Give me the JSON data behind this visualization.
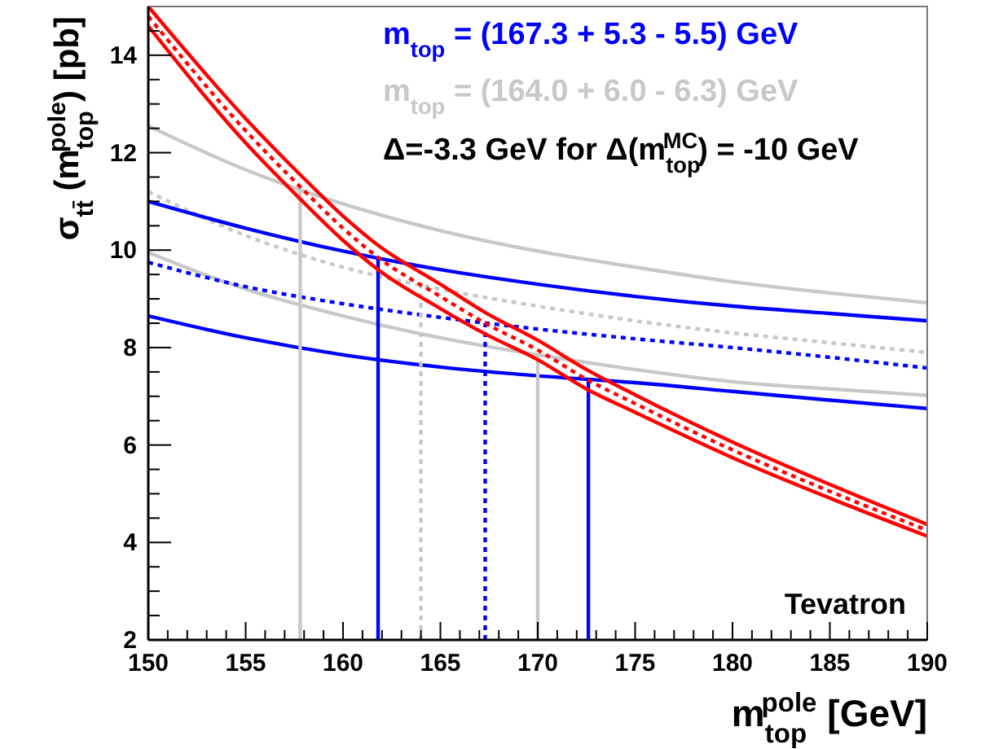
{
  "chart_data": {
    "type": "line",
    "xlabel": "m$_{top}$$^{pole}$ [GeV]",
    "ylabel": "σ$_{tt̄}$ (m$_{top}$$^{pole}$) [pb]",
    "xlim": [
      150,
      190
    ],
    "ylim": [
      2,
      15
    ],
    "xticks": [
      150,
      {
        "value": 151,
        "label": null
      },
      {
        "value": 152,
        "label": null
      },
      {
        "value": 153,
        "label": null
      },
      {
        "value": 154,
        "label": null
      },
      155,
      {
        "value": 156,
        "label": null
      },
      {
        "value": 157,
        "label": null
      },
      {
        "value": 158,
        "label": null
      },
      {
        "value": 159,
        "label": null
      },
      160,
      {
        "value": 161,
        "label": null
      },
      {
        "value": 162,
        "label": null
      },
      {
        "value": 163,
        "label": null
      },
      {
        "value": 164,
        "label": null
      },
      165,
      {
        "value": 166,
        "label": null
      },
      {
        "value": 167,
        "label": null
      },
      {
        "value": 168,
        "label": null
      },
      {
        "value": 169,
        "label": null
      },
      170,
      {
        "value": 171,
        "label": null
      },
      {
        "value": 172,
        "label": null
      },
      {
        "value": 173,
        "label": null
      },
      {
        "value": 174,
        "label": null
      },
      175,
      {
        "value": 176,
        "label": null
      },
      {
        "value": 177,
        "label": null
      },
      {
        "value": 178,
        "label": null
      },
      {
        "value": 179,
        "label": null
      },
      180,
      {
        "value": 181,
        "label": null
      },
      {
        "value": 182,
        "label": null
      },
      {
        "value": 183,
        "label": null
      },
      {
        "value": 184,
        "label": null
      },
      185,
      {
        "value": 186,
        "label": null
      },
      {
        "value": 187,
        "label": null
      },
      {
        "value": 188,
        "label": null
      },
      {
        "value": 189,
        "label": null
      },
      190
    ],
    "yticks": [
      2,
      {
        "value": 2.5,
        "label": null
      },
      {
        "value": 3,
        "label": null
      },
      {
        "value": 3.5,
        "label": null
      },
      4,
      {
        "value": 4.5,
        "label": null
      },
      {
        "value": 5,
        "label": null
      },
      {
        "value": 5.5,
        "label": null
      },
      6,
      {
        "value": 6.5,
        "label": null
      },
      {
        "value": 7,
        "label": null
      },
      {
        "value": 7.5,
        "label": null
      },
      8,
      {
        "value": 8.5,
        "label": null
      },
      {
        "value": 9,
        "label": null
      },
      {
        "value": 9.5,
        "label": null
      },
      10,
      {
        "value": 10.5,
        "label": null
      },
      {
        "value": 11,
        "label": null
      },
      {
        "value": 11.5,
        "label": null
      },
      12,
      {
        "value": 12.5,
        "label": null
      },
      {
        "value": 13,
        "label": null
      },
      {
        "value": 13.5,
        "label": null
      },
      14,
      {
        "value": 14.5,
        "label": null
      }
    ],
    "legend": "top right",
    "grid": false,
    "annotations": [
      "Δ=-3.3 GeV for Δ(m$_{top}$$^{MC}$) = -10 GeV",
      "Tevatron"
    ],
    "series": [
      {
        "color": "#c8c8c8",
        "line_style": "solid",
        "x": [
          150,
          155,
          160,
          165,
          170,
          175,
          180,
          185,
          190
        ],
        "values": [
          12.55,
          11.65,
          10.95,
          10.4,
          9.98,
          9.65,
          9.35,
          9.12,
          8.92
        ]
      },
      {
        "name": "m$_{top}$ = (164.0 + 6.0 - 6.3) GeV",
        "color": "#c8c8c8",
        "line_style": "dotted",
        "x": [
          150,
          155,
          160,
          165,
          170,
          175,
          180,
          185,
          190
        ],
        "values": [
          11.2,
          10.3,
          9.65,
          9.2,
          8.85,
          8.55,
          8.3,
          8.1,
          7.9
        ]
      },
      {
        "color": "#c8c8c8",
        "line_style": "solid",
        "x": [
          150,
          155,
          160,
          165,
          170,
          175,
          180,
          185,
          190
        ],
        "values": [
          9.95,
          9.2,
          8.65,
          8.2,
          7.85,
          7.55,
          7.3,
          7.15,
          7.02
        ]
      },
      {
        "color": "#0000ff",
        "line_style": "solid",
        "x": [
          150,
          155,
          160,
          165,
          170,
          175,
          180,
          185,
          190
        ],
        "values": [
          11.0,
          10.45,
          9.98,
          9.6,
          9.3,
          9.05,
          8.85,
          8.7,
          8.55
        ]
      },
      {
        "name": "m$_{top}$ = (167.3 + 5.3 - 5.5) GeV",
        "color": "#0000ff",
        "line_style": "dotted",
        "x": [
          150,
          155,
          160,
          165,
          170,
          175,
          180,
          185,
          190
        ],
        "values": [
          9.75,
          9.25,
          8.9,
          8.62,
          8.38,
          8.18,
          8.0,
          7.8,
          7.58
        ]
      },
      {
        "color": "#0000ff",
        "line_style": "solid",
        "x": [
          150,
          155,
          160,
          165,
          170,
          175,
          180,
          185,
          190
        ],
        "values": [
          8.65,
          8.2,
          7.85,
          7.6,
          7.42,
          7.28,
          7.1,
          6.92,
          6.75
        ]
      },
      {
        "color": "#c8c8c8",
        "line_style": "solid",
        "x": [
          157.8,
          157.8
        ],
        "values": [
          2,
          11.3
        ]
      },
      {
        "color": "#c8c8c8",
        "line_style": "dotted",
        "x": [
          164.0,
          164.0
        ],
        "values": [
          2,
          9.25
        ]
      },
      {
        "color": "#c8c8c8",
        "line_style": "solid",
        "x": [
          170.0,
          170.0
        ],
        "values": [
          2,
          7.85
        ]
      },
      {
        "color": "#0000ff",
        "line_style": "solid",
        "x": [
          161.8,
          161.8
        ],
        "values": [
          2,
          9.85
        ]
      },
      {
        "color": "#0000ff",
        "line_style": "dotted",
        "x": [
          167.3,
          167.3
        ],
        "values": [
          2,
          8.5
        ]
      },
      {
        "color": "#0000ff",
        "line_style": "solid",
        "x": [
          172.6,
          172.6
        ],
        "values": [
          2,
          7.35
        ]
      },
      {
        "color": "#ff0000",
        "line_style": "dotted",
        "x": [
          150,
          155,
          157.8,
          160,
          161.8,
          165,
          167.3,
          170,
          172.5,
          175,
          180,
          185,
          190
        ],
        "values": [
          14.8,
          12.45,
          11.3,
          10.45,
          9.85,
          9.05,
          8.5,
          7.95,
          7.35,
          6.85,
          5.9,
          5.05,
          4.25
        ]
      },
      {
        "color": "#ff0000",
        "line_style": "solid",
        "x": [
          150,
          155,
          157.8,
          160,
          161.8,
          165,
          167.3,
          170,
          172.5,
          175,
          180,
          185,
          190
        ],
        "values": [
          14.6,
          12.2,
          11.05,
          10.2,
          9.6,
          8.8,
          8.28,
          7.75,
          7.15,
          6.67,
          5.74,
          4.91,
          4.13
        ]
      },
      {
        "color": "#ff0000",
        "line_style": "solid",
        "x": [
          150,
          155,
          157.8,
          160,
          161.8,
          165,
          167.3,
          170,
          172.5,
          175,
          180,
          185,
          190
        ],
        "values": [
          15.0,
          12.7,
          11.55,
          10.7,
          10.1,
          9.3,
          8.72,
          8.15,
          7.55,
          7.03,
          6.06,
          5.19,
          4.37
        ]
      }
    ]
  }
}
